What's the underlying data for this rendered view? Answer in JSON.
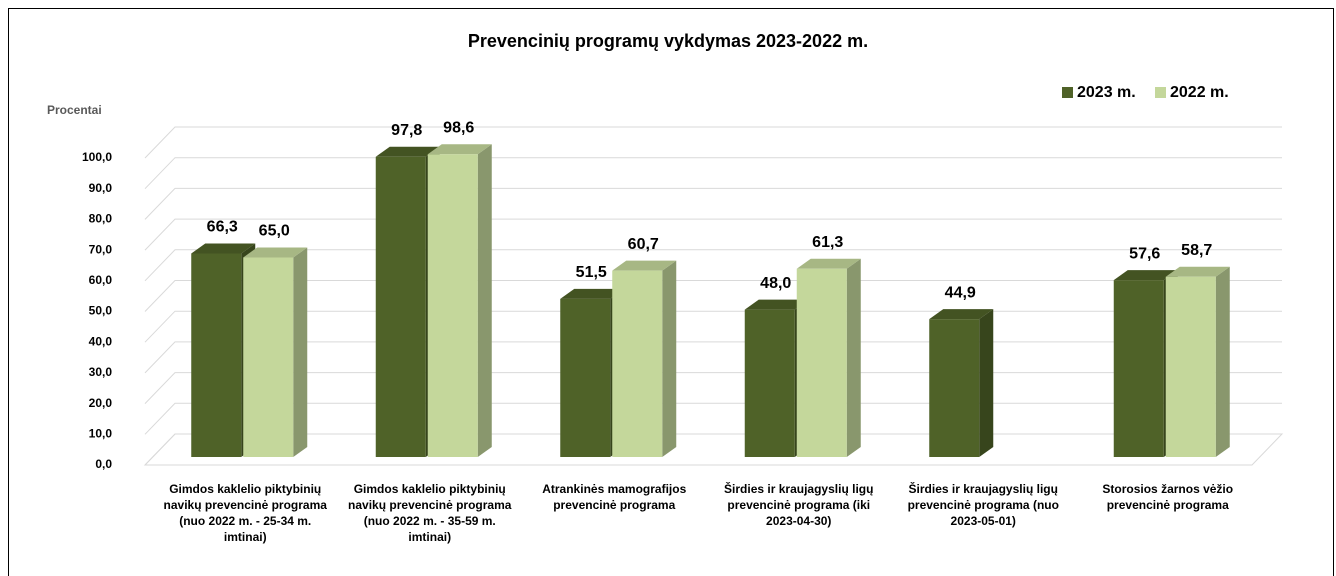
{
  "chart_data": {
    "type": "bar3d",
    "title": "Prevencinių programų vykdymas 2023-2022 m.",
    "y_label": "Procentai",
    "categories": [
      "Gimdos kaklelio piktybinių navikų prevencinė programa (nuo 2022 m. - 25-34 m. imtinai)",
      "Gimdos kaklelio piktybinių navikų prevencinė programa (nuo 2022 m. -  35-59 m. imtinai)",
      "Atrankinės mamografijos prevencinė programa",
      "Širdies ir kraujagyslių ligų prevencinė programa (iki 2023-04-30)",
      "Širdies ir kraujagyslių ligų prevencinė programa (nuo 2023-05-01)",
      "Storosios žarnos vėžio prevencinė programa"
    ],
    "series": [
      {
        "name": "2023 m.",
        "color": "#4f6228",
        "values": [
          66.3,
          97.8,
          51.5,
          48.0,
          44.9,
          57.6
        ],
        "value_labels": [
          "66,3",
          "97,8",
          "51,5",
          "48,0",
          "44,9",
          "57,6"
        ]
      },
      {
        "name": "2022 m.",
        "color": "#c4d79b",
        "values": [
          65.0,
          98.6,
          60.7,
          61.3,
          null,
          58.7
        ],
        "value_labels": [
          "65,0",
          "98,6",
          "60,7",
          "61,3",
          null,
          "58,7"
        ]
      }
    ],
    "ylim": [
      0,
      100
    ],
    "yticks": [
      {
        "value": 0,
        "label": "0,0"
      },
      {
        "value": 10,
        "label": "10,0"
      },
      {
        "value": 20,
        "label": "20,0"
      },
      {
        "value": 30,
        "label": "30,0"
      },
      {
        "value": 40,
        "label": "40,0"
      },
      {
        "value": 50,
        "label": "50,0"
      },
      {
        "value": 60,
        "label": "60,0"
      },
      {
        "value": 70,
        "label": "70,0"
      },
      {
        "value": 80,
        "label": "80,0"
      },
      {
        "value": 90,
        "label": "90,0"
      },
      {
        "value": 100,
        "label": "100,0"
      }
    ],
    "grid": true,
    "legend": "top-right"
  }
}
